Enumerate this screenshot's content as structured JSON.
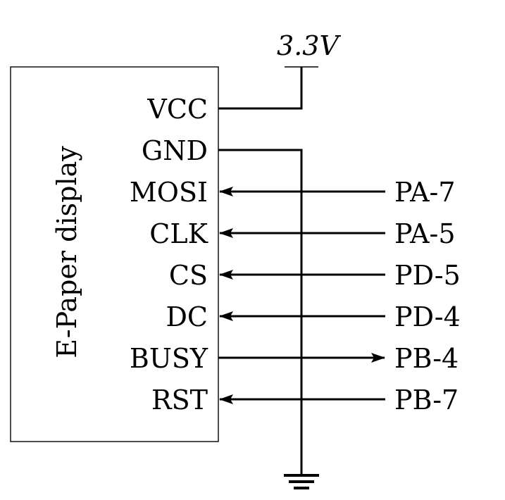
{
  "display": {
    "label": "E-Paper display"
  },
  "supply": {
    "voltage_value": "3.3",
    "voltage_unit": "V"
  },
  "pins": [
    {
      "name": "VCC",
      "connection": "supply"
    },
    {
      "name": "GND",
      "connection": "ground"
    },
    {
      "name": "MOSI",
      "mcu_pin": "PA-7",
      "direction": "to-display"
    },
    {
      "name": "CLK",
      "mcu_pin": "PA-5",
      "direction": "to-display"
    },
    {
      "name": "CS",
      "mcu_pin": "PD-5",
      "direction": "to-display"
    },
    {
      "name": "DC",
      "mcu_pin": "PD-4",
      "direction": "to-display"
    },
    {
      "name": "BUSY",
      "mcu_pin": "PB-4",
      "direction": "to-mcu"
    },
    {
      "name": "RST",
      "mcu_pin": "PB-7",
      "direction": "to-display"
    }
  ],
  "colors": {
    "line": "#000000",
    "background": "#ffffff"
  }
}
